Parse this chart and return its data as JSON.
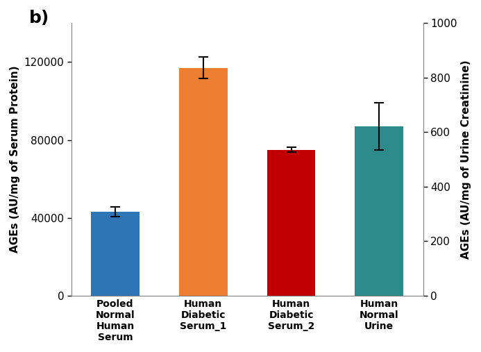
{
  "categories": [
    "Pooled\nNormal\nHuman\nSerum",
    "Human\nDiabetic\nSerum_1",
    "Human\nDiabetic\nSerum_2",
    "Human\nNormal\nUrine"
  ],
  "values": [
    43000,
    117000,
    75000,
    87000
  ],
  "errors": [
    2500,
    5500,
    1200,
    12000
  ],
  "colors": [
    "#2E75B6",
    "#ED7D31",
    "#C00000",
    "#2E8B8B"
  ],
  "left_ylabel": "AGEs (AU/mg of Serum Protein)",
  "right_ylabel": "AGEs (AU/mg of Urine Creatinine)",
  "left_ylim": [
    0,
    140000
  ],
  "right_ylim": [
    0,
    1000
  ],
  "left_yticks": [
    0,
    40000,
    80000,
    120000
  ],
  "right_yticks": [
    0,
    200,
    400,
    600,
    800,
    1000
  ],
  "panel_label": "b)",
  "background_color": "#FFFFFF",
  "bar_width": 0.55
}
